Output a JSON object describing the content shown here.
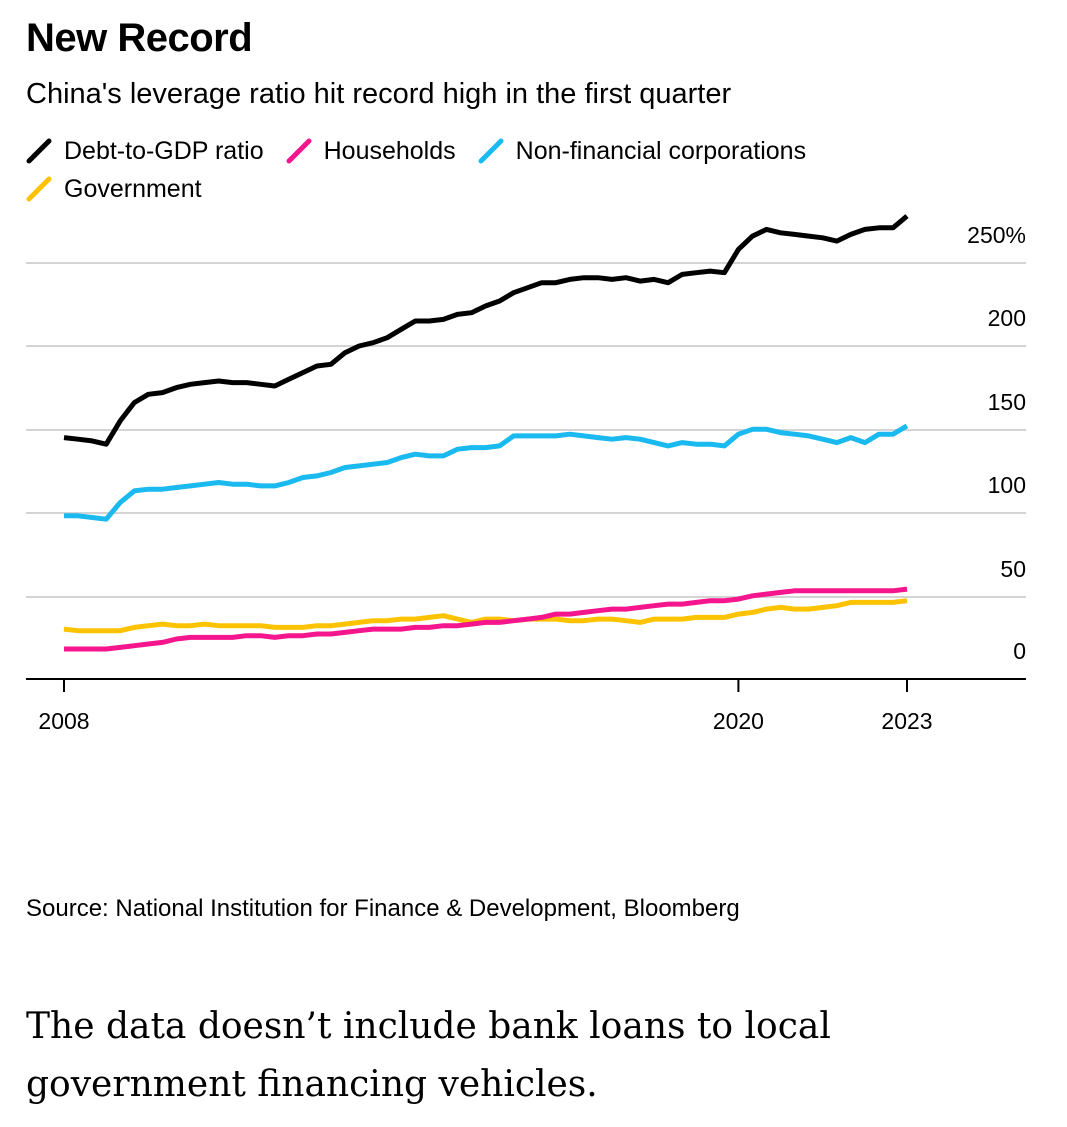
{
  "header": {
    "title": "New Record",
    "subtitle": "China's leverage ratio hit record high in the first quarter"
  },
  "chart_data": {
    "type": "line",
    "x": [
      "2008",
      "2008.25",
      "2008.5",
      "2008.75",
      "2009",
      "2009.25",
      "2009.5",
      "2009.75",
      "2010",
      "2010.25",
      "2010.5",
      "2010.75",
      "2011",
      "2011.25",
      "2011.5",
      "2011.75",
      "2012",
      "2012.25",
      "2012.5",
      "2012.75",
      "2013",
      "2013.25",
      "2013.5",
      "2013.75",
      "2014",
      "2014.25",
      "2014.5",
      "2014.75",
      "2015",
      "2015.25",
      "2015.5",
      "2015.75",
      "2016",
      "2016.25",
      "2016.5",
      "2016.75",
      "2017",
      "2017.25",
      "2017.5",
      "2017.75",
      "2018",
      "2018.25",
      "2018.5",
      "2018.75",
      "2019",
      "2019.25",
      "2019.5",
      "2019.75",
      "2020",
      "2020.25",
      "2020.5",
      "2020.75",
      "2021",
      "2021.25",
      "2021.5",
      "2021.75",
      "2022",
      "2022.25",
      "2022.5",
      "2022.75",
      "2023"
    ],
    "series": [
      {
        "name": "Debt-to-GDP ratio",
        "color": "#000000",
        "values": [
          145,
          144,
          143,
          141,
          155,
          166,
          171,
          172,
          175,
          177,
          178,
          179,
          178,
          178,
          177,
          176,
          180,
          184,
          188,
          189,
          196,
          200,
          202,
          205,
          210,
          215,
          215,
          216,
          219,
          220,
          224,
          227,
          232,
          235,
          238,
          238,
          240,
          241,
          241,
          240,
          241,
          239,
          240,
          238,
          243,
          244,
          245,
          244,
          258,
          266,
          270,
          268,
          267,
          266,
          265,
          263,
          267,
          270,
          271,
          271,
          278
        ]
      },
      {
        "name": "Households",
        "color": "#f5168d",
        "values": [
          18,
          18,
          18,
          18,
          19,
          20,
          21,
          22,
          24,
          25,
          25,
          25,
          25,
          26,
          26,
          25,
          26,
          26,
          27,
          27,
          28,
          29,
          30,
          30,
          30,
          31,
          31,
          32,
          32,
          33,
          34,
          34,
          35,
          36,
          37,
          39,
          39,
          40,
          41,
          42,
          42,
          43,
          44,
          45,
          45,
          46,
          47,
          47,
          48,
          50,
          51,
          52,
          53,
          53,
          53,
          53,
          53,
          53,
          53,
          53,
          54
        ]
      },
      {
        "name": "Non-financial corporations",
        "color": "#1ab9f0",
        "values": [
          98,
          98,
          97,
          96,
          106,
          113,
          114,
          114,
          115,
          116,
          117,
          118,
          117,
          117,
          116,
          116,
          118,
          121,
          122,
          124,
          127,
          128,
          129,
          130,
          133,
          135,
          134,
          134,
          138,
          139,
          139,
          140,
          146,
          146,
          146,
          146,
          147,
          146,
          145,
          144,
          145,
          144,
          142,
          140,
          142,
          141,
          141,
          140,
          147,
          150,
          150,
          148,
          147,
          146,
          144,
          142,
          145,
          142,
          147,
          147,
          152
        ]
      },
      {
        "name": "Government",
        "color": "#fdc300",
        "values": [
          30,
          29,
          29,
          29,
          29,
          31,
          32,
          33,
          32,
          32,
          33,
          32,
          32,
          32,
          32,
          31,
          31,
          31,
          32,
          32,
          33,
          34,
          35,
          35,
          36,
          36,
          37,
          38,
          36,
          34,
          36,
          36,
          35,
          36,
          36,
          36,
          35,
          35,
          36,
          36,
          35,
          34,
          36,
          36,
          36,
          37,
          37,
          37,
          39,
          40,
          42,
          43,
          42,
          42,
          43,
          44,
          46,
          46,
          46,
          46,
          47
        ]
      }
    ],
    "y_tick_labels": [
      "250%",
      "200",
      "150",
      "100",
      "50",
      "0"
    ],
    "x_tick_labels": [
      "2008",
      "2020",
      "2023"
    ],
    "ylim": [
      0,
      270
    ],
    "xlim": [
      2007.5,
      2024.5
    ],
    "grid": true
  },
  "footer": {
    "source": "Source: National Institution for Finance & Development, Bloomberg",
    "note": "The data doesn’t include bank loans to local government financing vehicles."
  }
}
